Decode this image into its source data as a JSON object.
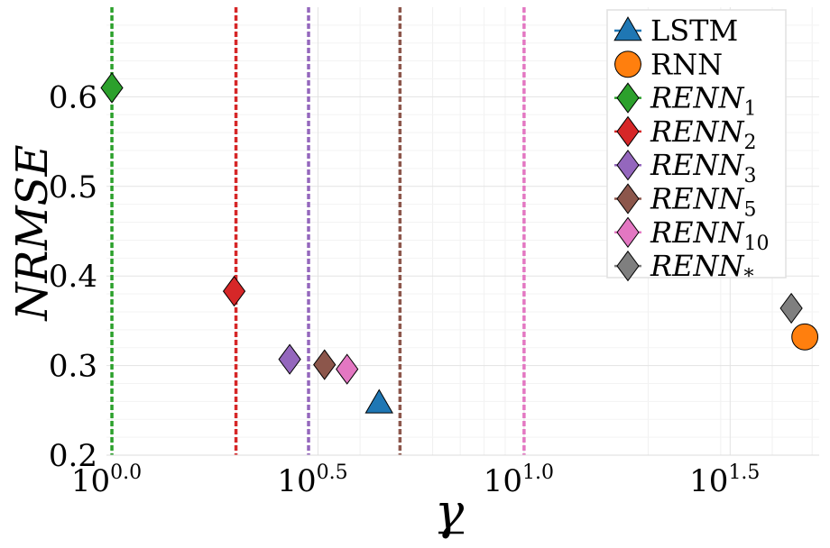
{
  "chart_data": {
    "type": "scatter",
    "xlabel": "γ",
    "ylabel": "NRMSE",
    "x_scale": "log10",
    "xlim": [
      0.97,
      52
    ],
    "ylim": [
      0.2,
      0.7
    ],
    "x_ticks": [
      {
        "value": 1.0,
        "label_base": "10",
        "label_exp": "0.0"
      },
      {
        "value": 3.1623,
        "label_base": "10",
        "label_exp": "0.5"
      },
      {
        "value": 10.0,
        "label_base": "10",
        "label_exp": "1.0"
      },
      {
        "value": 31.623,
        "label_base": "10",
        "label_exp": "1.5"
      }
    ],
    "y_ticks": [
      {
        "value": 0.2,
        "label": "0.2"
      },
      {
        "value": 0.3,
        "label": "0.3"
      },
      {
        "value": 0.4,
        "label": "0.4"
      },
      {
        "value": 0.5,
        "label": "0.5"
      },
      {
        "value": 0.6,
        "label": "0.6"
      }
    ],
    "grid": true,
    "legend_position": "top-right",
    "series": [
      {
        "name": "LSTM",
        "sub": "",
        "marker": "triangle",
        "color": "#1f77b4",
        "x": 4.45,
        "y": 0.258,
        "vline": null
      },
      {
        "name": "RNN",
        "sub": "",
        "marker": "circle",
        "color": "#ff7f0e",
        "x": 48.0,
        "y": 0.332,
        "vline": null
      },
      {
        "name": "RENN",
        "sub": "1",
        "marker": "diamond",
        "color": "#2ca02c",
        "x": 1.0,
        "y": 0.61,
        "vline": 1.0
      },
      {
        "name": "RENN",
        "sub": "2",
        "marker": "diamond",
        "color": "#d62728",
        "x": 1.98,
        "y": 0.383,
        "vline": 2.0
      },
      {
        "name": "RENN",
        "sub": "3",
        "marker": "diamond",
        "color": "#9467bd",
        "x": 2.7,
        "y": 0.307,
        "vline": 3.0
      },
      {
        "name": "RENN",
        "sub": "5",
        "marker": "diamond",
        "color": "#8c564b",
        "x": 3.28,
        "y": 0.301,
        "vline": 5.0
      },
      {
        "name": "RENN",
        "sub": "10",
        "marker": "diamond",
        "color": "#e377c2",
        "x": 3.72,
        "y": 0.296,
        "vline": 10.0
      },
      {
        "name": "RENN",
        "sub": "*",
        "marker": "diamond",
        "color": "#7f7f7f",
        "x": 44.5,
        "y": 0.364,
        "vline": null
      }
    ]
  }
}
